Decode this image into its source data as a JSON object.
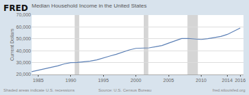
{
  "chart_data": {
    "type": "line",
    "title": "Median Household Income in the United States",
    "ylabel": "Current Dollars",
    "annotations": [
      "FRED",
      "Shaded areas indicate U.S. recessions",
      "Source: U.S. Census Bureau",
      "fred.stlouisfed.org"
    ],
    "x": [
      1984,
      1985,
      1986,
      1987,
      1988,
      1989,
      1990,
      1991,
      1992,
      1993,
      1994,
      1995,
      1996,
      1997,
      1998,
      1999,
      2000,
      2001,
      2002,
      2003,
      2004,
      2005,
      2006,
      2007,
      2008,
      2009,
      2010,
      2011,
      2012,
      2013,
      2014,
      2015,
      2016
    ],
    "values": [
      22415,
      23618,
      24897,
      26061,
      27225,
      28906,
      29943,
      30126,
      30636,
      31241,
      32264,
      34076,
      35492,
      37005,
      38885,
      40696,
      41990,
      42228,
      42409,
      43318,
      44389,
      46326,
      48201,
      50233,
      50303,
      49777,
      49445,
      50054,
      51017,
      51939,
      53657,
      56516,
      59039
    ],
    "color": "#5b7fb5",
    "recessions": {
      "ranges": [
        [
          1990.6,
          1991.3
        ],
        [
          2001.2,
          2001.9
        ],
        [
          2007.9,
          2009.5
        ]
      ],
      "color": "#d0d0d0"
    },
    "xlim": [
      1984,
      2016.5
    ],
    "xticks": [
      1985,
      1990,
      1995,
      2000,
      2005,
      2010,
      2014,
      2016
    ],
    "ylim": [
      20000,
      70000
    ],
    "yticks": [
      {
        "value": 20000,
        "label": "20,000"
      },
      {
        "value": 30000,
        "label": "30,000"
      },
      {
        "value": 40000,
        "label": "40,000"
      },
      {
        "value": 50000,
        "label": "50,000"
      },
      {
        "value": 60000,
        "label": "60,000"
      },
      {
        "value": 70000,
        "label": "70,000"
      }
    ],
    "grid": true
  }
}
